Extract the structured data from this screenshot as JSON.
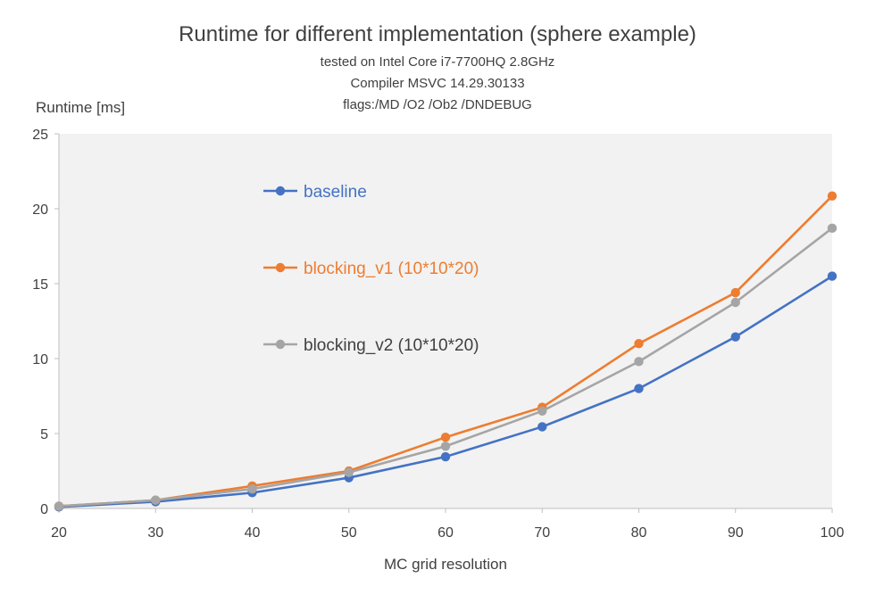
{
  "chart_data": {
    "type": "line",
    "title": "Runtime for different implementation (sphere example)",
    "subtitle_lines": [
      "tested on Intel Core i7-7700HQ 2.8GHz",
      "Compiler MSVC 14.29.30133",
      "flags:/MD /O2 /Ob2 /DNDEBUG"
    ],
    "xlabel": "MC grid resolution",
    "ylabel": "Runtime [ms]",
    "x": [
      20,
      30,
      40,
      50,
      60,
      70,
      80,
      90,
      100
    ],
    "xlim": [
      20,
      100
    ],
    "ylim": [
      0,
      25
    ],
    "yticks": [
      0,
      5,
      10,
      15,
      20,
      25
    ],
    "grid": "none",
    "legend_placement": "inside-left",
    "series": [
      {
        "name": "baseline",
        "color": "#4472C4",
        "values": [
          0.1,
          0.45,
          1.05,
          2.05,
          3.45,
          5.45,
          8.0,
          11.45,
          15.5
        ]
      },
      {
        "name": "blocking_v1 (10*10*20)",
        "color": "#ED7D31",
        "values": [
          0.15,
          0.55,
          1.5,
          2.5,
          4.75,
          6.75,
          11.0,
          14.4,
          20.85
        ]
      },
      {
        "name": "blocking_v2 (10*10*20)",
        "color": "#A5A5A5",
        "values": [
          0.15,
          0.55,
          1.3,
          2.4,
          4.15,
          6.5,
          9.8,
          13.75,
          18.7
        ]
      }
    ]
  }
}
